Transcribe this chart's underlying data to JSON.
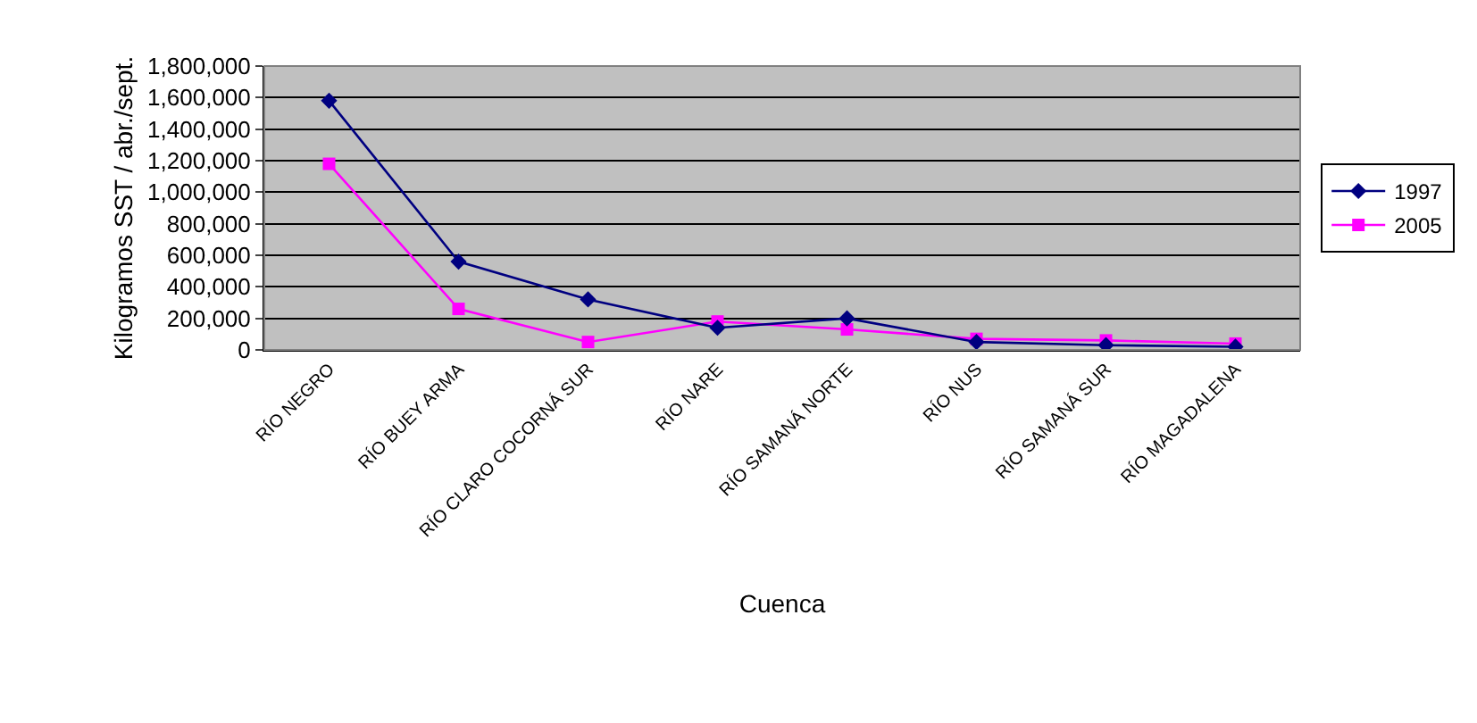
{
  "chart_data": {
    "type": "line",
    "xlabel": "Cuenca",
    "ylabel": "Kilogramos SST / abr./sept.",
    "categories": [
      "RÍO NEGRO",
      "RÍO BUEY ARMA",
      "RÍO CLARO COCORNÁ SUR",
      "RÍO NARE",
      "RÍO SAMANÁ NORTE",
      "RÍO NUS",
      "RÍO SAMANÁ SUR",
      "RÍO MAGADALENA"
    ],
    "series": [
      {
        "name": "1997",
        "color": "#000080",
        "marker": "diamond",
        "values": [
          1580000,
          560000,
          320000,
          140000,
          200000,
          50000,
          30000,
          20000
        ]
      },
      {
        "name": "2005",
        "color": "#ff00ff",
        "marker": "square",
        "values": [
          1180000,
          260000,
          50000,
          180000,
          130000,
          70000,
          60000,
          40000
        ]
      }
    ],
    "ylim": [
      0,
      1800000
    ],
    "yticks": [
      {
        "value": 0,
        "label": "0"
      },
      {
        "value": 200000,
        "label": "200,000"
      },
      {
        "value": 400000,
        "label": "400,000"
      },
      {
        "value": 600000,
        "label": "600,000"
      },
      {
        "value": 800000,
        "label": "800,000"
      },
      {
        "value": 1000000,
        "label": "1,000,000"
      },
      {
        "value": 1200000,
        "label": "1,200,000"
      },
      {
        "value": 1400000,
        "label": "1,400,000"
      },
      {
        "value": 1600000,
        "label": "1,600,000"
      },
      {
        "value": 1800000,
        "label": "1,800,000"
      }
    ],
    "grid": "y",
    "legend": "right",
    "line_style": "solid"
  }
}
